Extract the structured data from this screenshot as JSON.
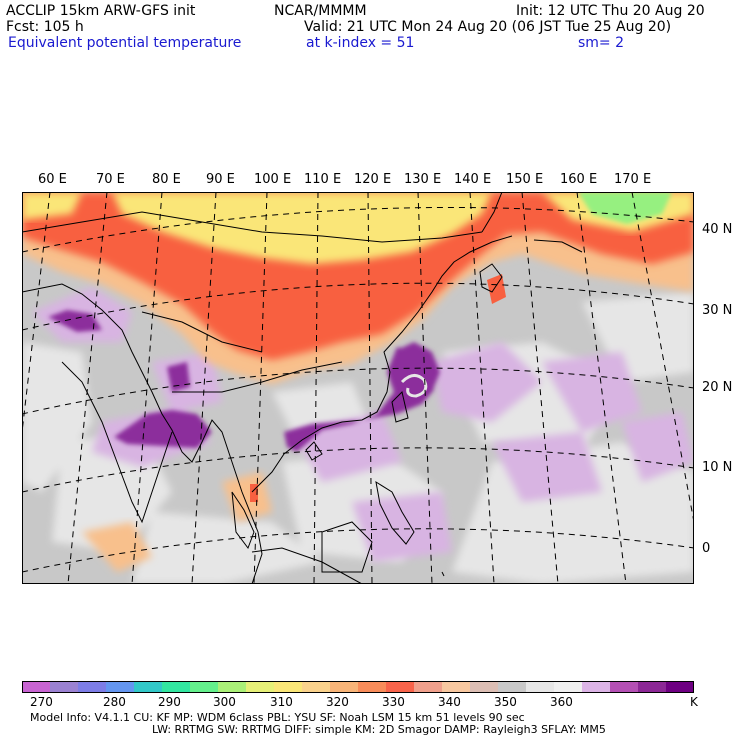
{
  "header": {
    "model": "ACCLIP 15km ARW-GFS init",
    "org": "NCAR/MMMM",
    "init": "Init: 12 UTC Thu 20 Aug 20",
    "fcst": "Fcst:  105 h",
    "valid": "Valid: 21 UTC Mon 24 Aug 20 (06 JST Tue 25 Aug 20)",
    "field": "Equivalent potential temperature",
    "level": "at k-index =  51",
    "smooth": "sm= 2"
  },
  "map": {
    "lon_labels": [
      "60 E",
      "70 E",
      "80 E",
      "90 E",
      "100 E",
      "110 E",
      "120 E",
      "130 E",
      "140 E",
      "150 E",
      "160 E",
      "170 E"
    ],
    "lat_labels": [
      "40 N",
      "30 N",
      "20 N",
      "10 N",
      "0"
    ],
    "colors": {
      "ocean_gray": "#c8c8c8",
      "light_gray": "#e6e6e6",
      "light_purple": "#d8b4e2",
      "dark_purple": "#8c2d9c",
      "orange": "#f8c08c",
      "red": "#f86040",
      "yellow": "#fae678",
      "green": "#96f080"
    }
  },
  "colorbar": {
    "colors": [
      "#c864d2",
      "#9b82d2",
      "#7d7de6",
      "#6496f0",
      "#32c8c8",
      "#32e6a0",
      "#64f08c",
      "#aaf078",
      "#e6f078",
      "#fae678",
      "#fad28c",
      "#f8b478",
      "#f88c5a",
      "#f8644b",
      "#f0a08c",
      "#f8c8a0",
      "#dcbeb4",
      "#c8c8c8",
      "#e6e6e6",
      "#f0f0f0",
      "#dcb4e6",
      "#b450b4",
      "#8c2896",
      "#6e0082"
    ],
    "labels": [
      "270",
      "280",
      "290",
      "300",
      "310",
      "320",
      "330",
      "340",
      "350",
      "360"
    ],
    "unit": "K"
  },
  "footer": {
    "line1": "Model Info: V4.1.1     CU: KF         MP: WDM 6class   PBL: YSU        SF: Noah LSM      15 km    51 levels    90 sec",
    "line2": "LW: RRTMG    SW: RRTMG   DIFF: simple KM: 2D Smagor DAMP: Rayleigh3  SFLAY: MM5"
  }
}
